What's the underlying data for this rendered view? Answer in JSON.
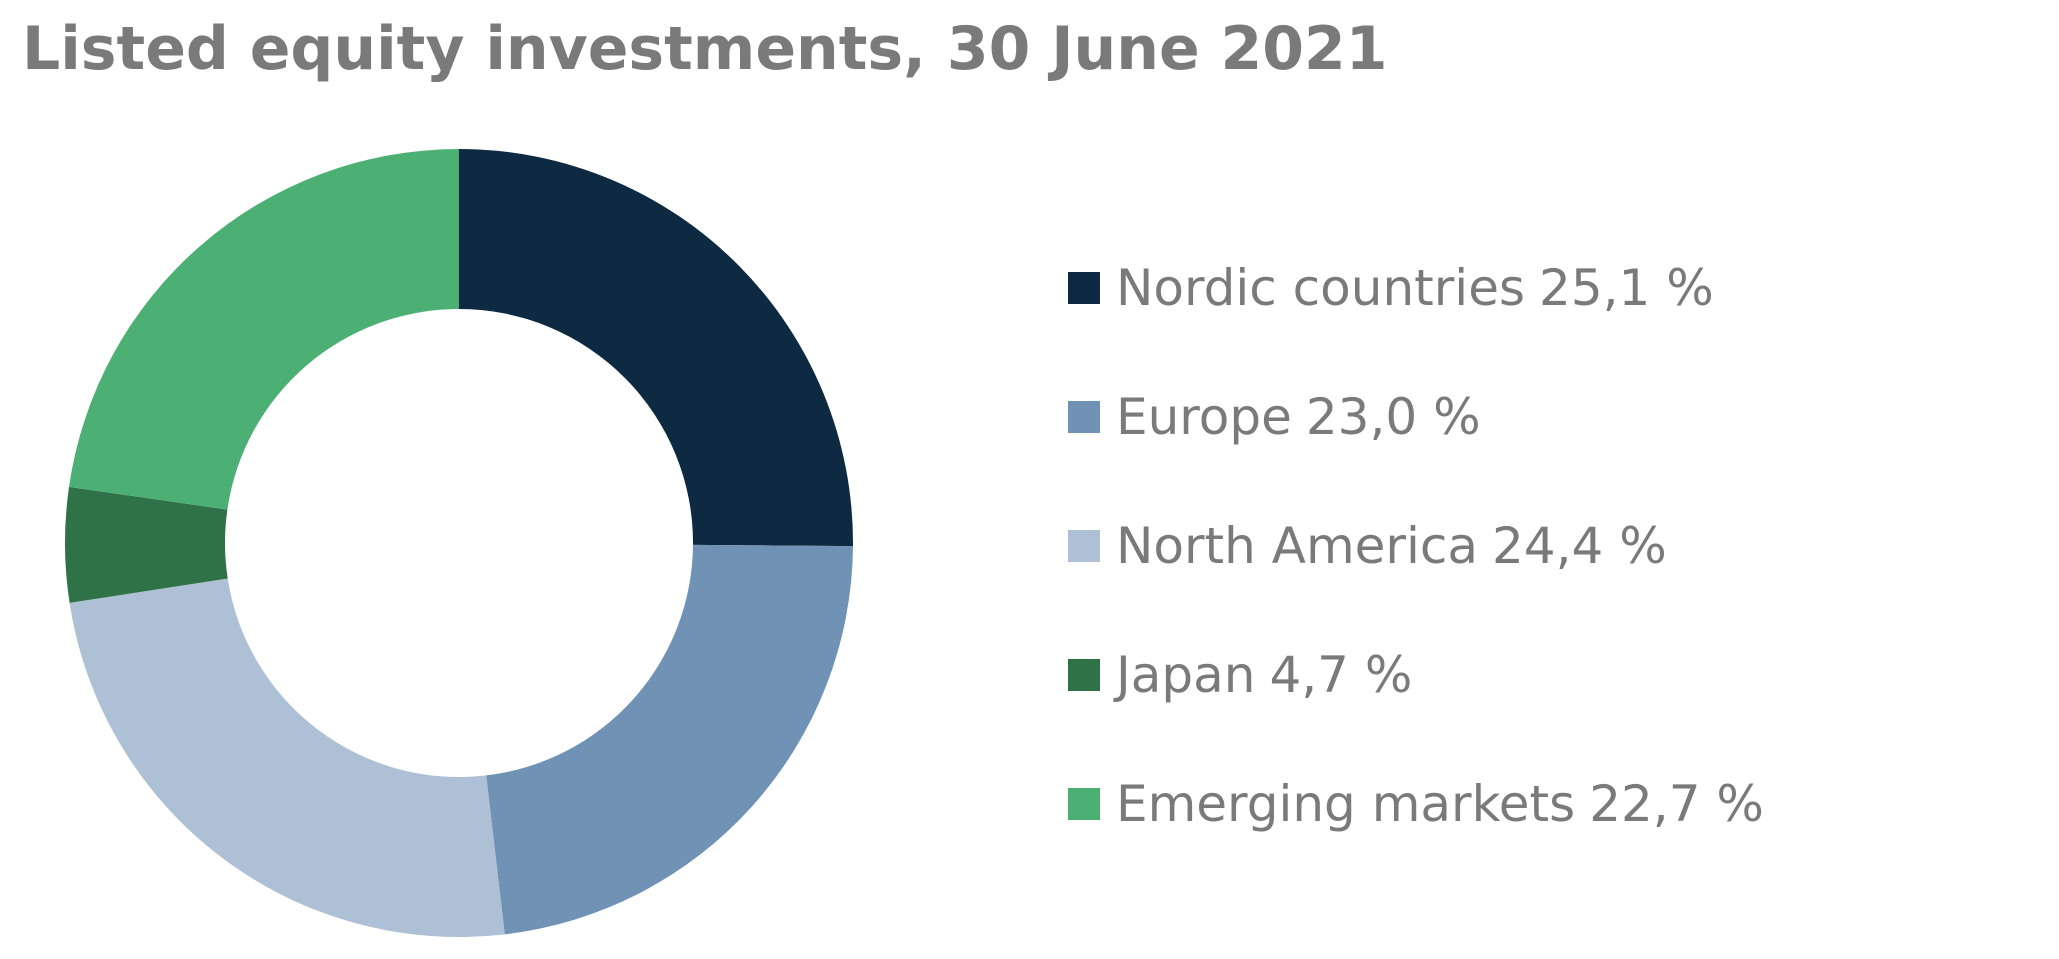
{
  "chart_data": {
    "type": "pie",
    "title": "Listed equity investments, 30 June 2021",
    "donut": true,
    "legend_position": "right",
    "slices": [
      {
        "label": "Nordic countries",
        "value": 25.1,
        "value_text": "25,1 %",
        "color": "#0e2a42"
      },
      {
        "label": "Europe",
        "value": 23.0,
        "value_text": "23,0 %",
        "color": "#7092b5"
      },
      {
        "label": "North America",
        "value": 24.4,
        "value_text": "24,4 %",
        "color": "#adc0d5"
      },
      {
        "label": "Japan",
        "value": 4.7,
        "value_text": "4,7 %",
        "color": "#2f7247"
      },
      {
        "label": "Emerging markets",
        "value": 22.7,
        "value_text": "22,7 %",
        "color": "#4caf73"
      }
    ]
  }
}
